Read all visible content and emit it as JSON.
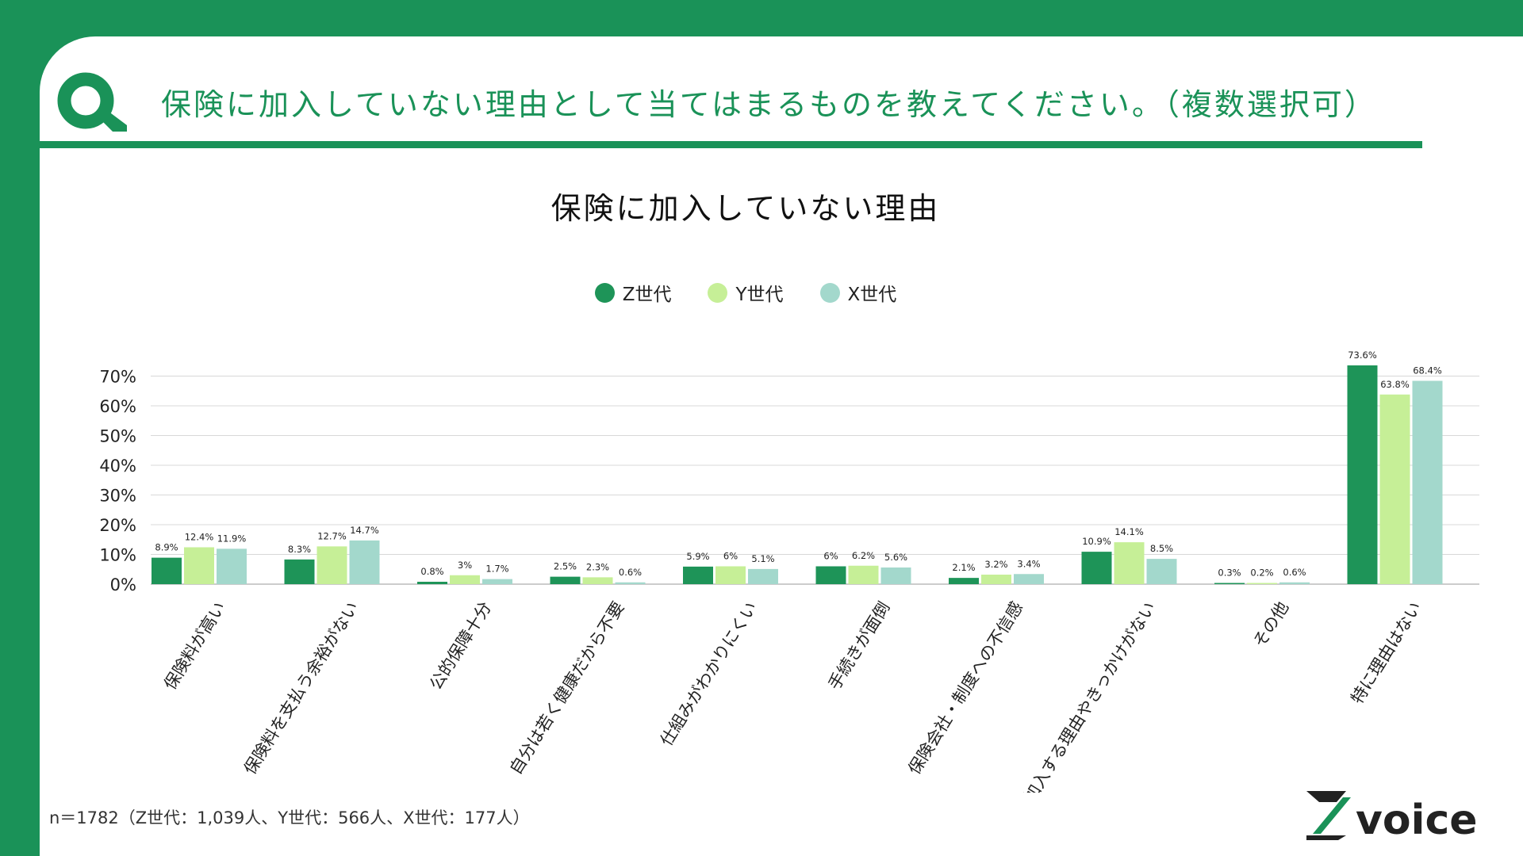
{
  "question": "保険に加入していない理由として当てはまるものを教えてください。（複数選択可）",
  "footnote": "n＝1782（Z世代：1,039人、Y世代：566人、X世代：177人）",
  "brand": {
    "word": "voice",
    "mark": "Z"
  },
  "colors": {
    "green": "#1a9258",
    "z": "#1e9458",
    "y": "#c6ef97",
    "x": "#a3d8cc"
  },
  "chart_data": {
    "type": "bar",
    "title": "保険に加入していない理由",
    "categories": [
      "保険料が高い",
      "保険料を支払う余裕がない",
      "公的保障十分",
      "自分は若く健康だから不要",
      "仕組みがわかりにくい",
      "手続きが面倒",
      "保険会社・制度への不信感",
      "加入する理由やきっかけがない",
      "その他",
      "特に理由はない"
    ],
    "series": [
      {
        "name": "Z世代",
        "color": "#1e9458",
        "values": [
          8.9,
          8.3,
          0.8,
          2.5,
          5.9,
          6,
          2.1,
          10.9,
          0.3,
          73.6
        ],
        "labels": [
          "8.9%",
          "8.3%",
          "0.8%",
          "2.5%",
          "5.9%",
          "6%",
          "2.1%",
          "10.9%",
          "0.3%",
          "73.6%"
        ]
      },
      {
        "name": "Y世代",
        "color": "#c6ef97",
        "values": [
          12.4,
          12.7,
          3,
          2.3,
          6,
          6.2,
          3.2,
          14.1,
          0.2,
          63.8
        ],
        "labels": [
          "12.4%",
          "12.7%",
          "3%",
          "2.3%",
          "6%",
          "6.2%",
          "3.2%",
          "14.1%",
          "0.2%",
          "63.8%"
        ]
      },
      {
        "name": "X世代",
        "color": "#a3d8cc",
        "values": [
          11.9,
          14.7,
          1.7,
          0.6,
          5.1,
          5.6,
          3.4,
          8.5,
          0.6,
          68.4
        ],
        "labels": [
          "11.9%",
          "14.7%",
          "1.7%",
          "0.6%",
          "5.1%",
          "5.6%",
          "3.4%",
          "8.5%",
          "0.6%",
          "68.4%"
        ]
      }
    ],
    "y_ticks": [
      "0%",
      "10%",
      "20%",
      "30%",
      "40%",
      "50%",
      "60%",
      "70%"
    ],
    "ylim": [
      0,
      80
    ],
    "grid": true,
    "legend": "top-center"
  }
}
